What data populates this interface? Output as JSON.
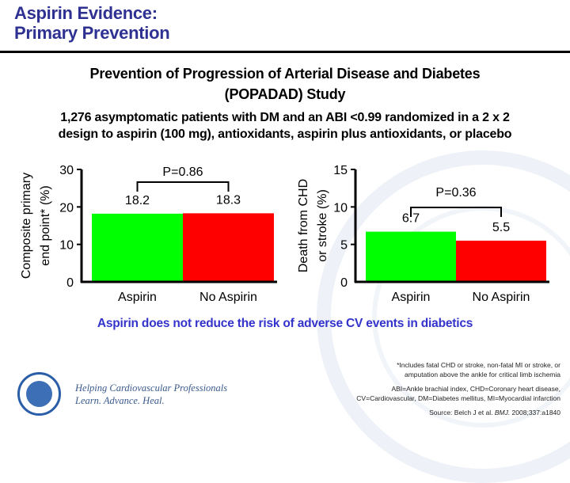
{
  "header": {
    "title_line1": "Aspirin Evidence:",
    "title_line2": "Primary Prevention"
  },
  "study": {
    "name_line1": "Prevention of Progression of Arterial Disease and Diabetes",
    "name_line2": "(POPADAD) Study",
    "design_line1": "1,276 asymptomatic patients with DM and an ABI <0.99 randomized in a 2 x 2",
    "design_line2": "design to aspirin (100 mg), antioxidants, aspirin plus antioxidants, or placebo"
  },
  "chart_data": [
    {
      "type": "bar",
      "categories": [
        "Aspirin",
        "No Aspirin"
      ],
      "values": [
        18.2,
        18.3
      ],
      "value_labels": [
        "18.2",
        "18.3"
      ],
      "colors": [
        "#00ff00",
        "#ff0000"
      ],
      "ylabel_line1": "Composite primary",
      "ylabel_line2": "end point* (%)",
      "ylim": [
        0,
        30
      ],
      "yticks": [
        0,
        10,
        20,
        30
      ],
      "annotation": "P=0.86",
      "grid": false
    },
    {
      "type": "bar",
      "categories": [
        "Aspirin",
        "No Aspirin"
      ],
      "values": [
        6.7,
        5.5
      ],
      "value_labels": [
        "6.7",
        "5.5"
      ],
      "colors": [
        "#00ff00",
        "#ff0000"
      ],
      "ylabel_line1": "Death from CHD",
      "ylabel_line2": "or stroke (%)",
      "ylim": [
        0,
        15
      ],
      "yticks": [
        0,
        5,
        10,
        15
      ],
      "annotation": "P=0.36",
      "grid": false
    }
  ],
  "conclusion": "Aspirin does not reduce the risk of adverse CV events in diabetics",
  "footnotes": {
    "asterisk_line1": "*Includes fatal CHD or stroke, non-fatal MI or stroke, or",
    "asterisk_line2": "amputation above the ankle for critical limb ischemia",
    "abbrev_line1": "ABI=Ankle brachial index, CHD=Coronary heart disease,",
    "abbrev_line2": "CV=Cardiovascular, DM=Diabetes mellitus, MI=Myocardial infarction",
    "source_prefix": "Source: Belch J et al. ",
    "source_journal": "BMJ.",
    "source_suffix": " 2008;337:a1840"
  },
  "branding": {
    "logo": "american-college-of-cardiology-seal-icon",
    "tagline_line1": "Helping Cardiovascular Professionals",
    "tagline_line2": "Learn. Advance. Heal."
  }
}
